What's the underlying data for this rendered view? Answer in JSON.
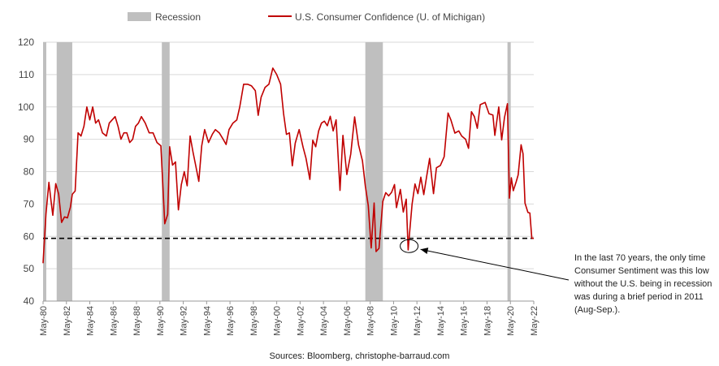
{
  "chart_data": {
    "type": "line",
    "title": "",
    "xlabel": "",
    "ylabel": "",
    "ylim": [
      40,
      120
    ],
    "yticks": [
      40,
      50,
      60,
      70,
      80,
      90,
      100,
      110,
      120
    ],
    "xlim": [
      "1980-05",
      "2022-05"
    ],
    "xticks": [
      "May-80",
      "May-82",
      "May-84",
      "May-86",
      "May-88",
      "May-90",
      "May-92",
      "May-94",
      "May-96",
      "May-98",
      "May-00",
      "May-02",
      "May-04",
      "May-06",
      "May-08",
      "May-10",
      "May-12",
      "May-14",
      "May-16",
      "May-18",
      "May-20",
      "May-22"
    ],
    "grid": "horizontal",
    "legend": {
      "placement": "top",
      "entries": [
        "Recession",
        "U.S. Consumer Confidence (U. of Michigan)"
      ]
    },
    "recessions": [
      {
        "start": "1980-01",
        "end": "1980-07"
      },
      {
        "start": "1981-07",
        "end": "1982-11"
      },
      {
        "start": "1990-07",
        "end": "1991-03"
      },
      {
        "start": "2007-12",
        "end": "2009-06"
      },
      {
        "start": "2020-02",
        "end": "2020-04"
      }
    ],
    "reference_line": {
      "y": 59.4,
      "style": "dashed"
    },
    "series": [
      {
        "name": "U.S. Consumer Confidence (U. of Michigan)",
        "color": "#c00000",
        "points": [
          [
            "1980-05",
            51.7
          ],
          [
            "1980-08",
            67
          ],
          [
            "1980-11",
            76.7
          ],
          [
            "1981-01",
            71.4
          ],
          [
            "1981-03",
            66.5
          ],
          [
            "1981-06",
            76.3
          ],
          [
            "1981-09",
            73.1
          ],
          [
            "1981-12",
            64.3
          ],
          [
            "1982-03",
            66
          ],
          [
            "1982-06",
            65.7
          ],
          [
            "1982-09",
            69
          ],
          [
            "1982-11",
            73
          ],
          [
            "1983-02",
            74
          ],
          [
            "1983-05",
            92
          ],
          [
            "1983-08",
            91
          ],
          [
            "1983-11",
            94
          ],
          [
            "1984-02",
            100
          ],
          [
            "1984-05",
            96
          ],
          [
            "1984-08",
            100
          ],
          [
            "1984-11",
            95
          ],
          [
            "1985-02",
            96
          ],
          [
            "1985-06",
            92
          ],
          [
            "1985-10",
            91
          ],
          [
            "1986-01",
            95
          ],
          [
            "1986-04",
            96
          ],
          [
            "1986-07",
            97
          ],
          [
            "1986-10",
            94
          ],
          [
            "1987-01",
            90
          ],
          [
            "1987-04",
            92
          ],
          [
            "1987-07",
            92
          ],
          [
            "1987-10",
            89
          ],
          [
            "1988-01",
            90
          ],
          [
            "1988-04",
            94
          ],
          [
            "1988-07",
            95
          ],
          [
            "1988-10",
            97
          ],
          [
            "1989-02",
            95
          ],
          [
            "1989-06",
            92
          ],
          [
            "1989-10",
            92
          ],
          [
            "1990-02",
            89
          ],
          [
            "1990-06",
            88
          ],
          [
            "1990-08",
            76
          ],
          [
            "1990-10",
            63.9
          ],
          [
            "1991-01",
            66.8
          ],
          [
            "1991-03",
            87.7
          ],
          [
            "1991-06",
            82
          ],
          [
            "1991-09",
            83
          ],
          [
            "1991-12",
            68.2
          ],
          [
            "1992-03",
            76
          ],
          [
            "1992-06",
            80
          ],
          [
            "1992-09",
            75.6
          ],
          [
            "1992-12",
            91
          ],
          [
            "1993-03",
            86
          ],
          [
            "1993-06",
            81.5
          ],
          [
            "1993-09",
            77
          ],
          [
            "1993-12",
            88
          ],
          [
            "1994-03",
            93
          ],
          [
            "1994-07",
            89
          ],
          [
            "1994-11",
            91.6
          ],
          [
            "1995-02",
            93
          ],
          [
            "1995-06",
            92
          ],
          [
            "1995-10",
            90
          ],
          [
            "1996-01",
            88.4
          ],
          [
            "1996-04",
            93
          ],
          [
            "1996-08",
            95
          ],
          [
            "1996-12",
            96
          ],
          [
            "1997-03",
            100
          ],
          [
            "1997-07",
            107
          ],
          [
            "1997-11",
            107
          ],
          [
            "1998-03",
            106.5
          ],
          [
            "1998-07",
            105
          ],
          [
            "1998-10",
            97.4
          ],
          [
            "1999-01",
            103
          ],
          [
            "1999-05",
            106
          ],
          [
            "1999-09",
            107
          ],
          [
            "2000-01",
            112
          ],
          [
            "2000-05",
            110
          ],
          [
            "2000-09",
            107
          ],
          [
            "2000-12",
            98
          ],
          [
            "2001-03",
            91.5
          ],
          [
            "2001-06",
            92
          ],
          [
            "2001-09",
            81.8
          ],
          [
            "2001-12",
            88.8
          ],
          [
            "2002-04",
            93
          ],
          [
            "2002-08",
            87.6
          ],
          [
            "2002-11",
            84.2
          ],
          [
            "2003-03",
            77.6
          ],
          [
            "2003-06",
            89.7
          ],
          [
            "2003-09",
            87.7
          ],
          [
            "2003-12",
            92.6
          ],
          [
            "2004-03",
            95
          ],
          [
            "2004-06",
            95.6
          ],
          [
            "2004-09",
            94.2
          ],
          [
            "2004-12",
            97.1
          ],
          [
            "2005-03",
            92.6
          ],
          [
            "2005-06",
            96
          ],
          [
            "2005-10",
            74.2
          ],
          [
            "2006-01",
            91.2
          ],
          [
            "2006-05",
            79.1
          ],
          [
            "2006-09",
            85.4
          ],
          [
            "2007-01",
            96.9
          ],
          [
            "2007-05",
            88.3
          ],
          [
            "2007-09",
            83.4
          ],
          [
            "2007-12",
            75.5
          ],
          [
            "2008-03",
            69.5
          ],
          [
            "2008-06",
            56.4
          ],
          [
            "2008-09",
            70.3
          ],
          [
            "2008-11",
            55.3
          ],
          [
            "2009-02",
            56.3
          ],
          [
            "2009-06",
            70.8
          ],
          [
            "2009-09",
            73.5
          ],
          [
            "2009-12",
            72.5
          ],
          [
            "2010-03",
            73.6
          ],
          [
            "2010-06",
            76
          ],
          [
            "2010-08",
            68.9
          ],
          [
            "2010-12",
            74.5
          ],
          [
            "2011-03",
            67.5
          ],
          [
            "2011-06",
            71.5
          ],
          [
            "2011-08",
            55.8
          ],
          [
            "2011-09",
            59.5
          ],
          [
            "2011-12",
            69.9
          ],
          [
            "2012-03",
            76.2
          ],
          [
            "2012-06",
            73.2
          ],
          [
            "2012-09",
            78.3
          ],
          [
            "2012-12",
            72.9
          ],
          [
            "2013-03",
            78.6
          ],
          [
            "2013-06",
            84.1
          ],
          [
            "2013-10",
            73.2
          ],
          [
            "2014-01",
            81.2
          ],
          [
            "2014-05",
            81.9
          ],
          [
            "2014-09",
            84.6
          ],
          [
            "2015-01",
            98.1
          ],
          [
            "2015-04",
            95.9
          ],
          [
            "2015-08",
            91.9
          ],
          [
            "2015-12",
            92.6
          ],
          [
            "2016-03",
            91
          ],
          [
            "2016-07",
            90
          ],
          [
            "2016-10",
            87.2
          ],
          [
            "2017-01",
            98.5
          ],
          [
            "2017-04",
            97
          ],
          [
            "2017-07",
            93.4
          ],
          [
            "2017-10",
            100.7
          ],
          [
            "2018-03",
            101.4
          ],
          [
            "2018-07",
            97.9
          ],
          [
            "2018-11",
            97.5
          ],
          [
            "2019-01",
            91.2
          ],
          [
            "2019-05",
            100
          ],
          [
            "2019-08",
            89.8
          ],
          [
            "2019-11",
            96.8
          ],
          [
            "2020-02",
            101
          ],
          [
            "2020-04",
            71.8
          ],
          [
            "2020-06",
            78.1
          ],
          [
            "2020-08",
            74.1
          ],
          [
            "2020-11",
            76.9
          ],
          [
            "2021-01",
            79
          ],
          [
            "2021-04",
            88.3
          ],
          [
            "2021-06",
            85.5
          ],
          [
            "2021-08",
            70.3
          ],
          [
            "2021-11",
            67.4
          ],
          [
            "2022-01",
            67.2
          ],
          [
            "2022-03",
            59.4
          ],
          [
            "2022-05",
            59.4
          ]
        ]
      }
    ],
    "annotation": "In the last 70 years, the only time Consumer Sentiment was this low without the U.S. being in recession was during a brief period in 2011 (Aug-Sep.).",
    "source": "Sources: Bloomberg, christophe-barraud.com"
  },
  "colors": {
    "line": "#c00000",
    "recession": "#bfbfbf",
    "grid": "#d9d9d9"
  }
}
